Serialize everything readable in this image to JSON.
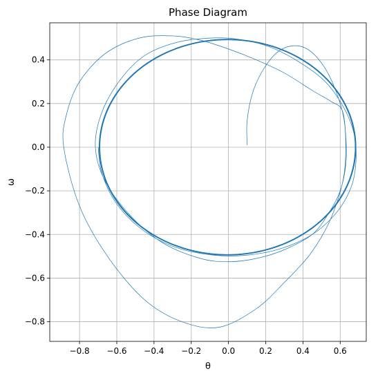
{
  "chart_data": {
    "type": "line",
    "title": "Phase Diagram",
    "xlabel": "θ",
    "ylabel": "ω",
    "xlim": [
      -0.96,
      0.74
    ],
    "ylim": [
      -0.89,
      0.57
    ],
    "xticks": [
      -0.8,
      -0.6,
      -0.4,
      -0.2,
      0.0,
      0.2,
      0.4,
      0.6
    ],
    "yticks": [
      -0.8,
      -0.6,
      -0.4,
      -0.2,
      0.0,
      0.2,
      0.4
    ],
    "xtick_labels": [
      "−0.8",
      "−0.6",
      "−0.4",
      "−0.2",
      "0.0",
      "0.2",
      "0.4",
      "0.6"
    ],
    "ytick_labels": [
      "−0.8",
      "−0.6",
      "−0.4",
      "−0.2",
      "0.0",
      "0.2",
      "0.4"
    ],
    "grid": true,
    "line_color": "#1f77b4",
    "series": [
      {
        "points": [
          [
            0.1,
            0.01
          ],
          [
            0.1,
            0.12
          ],
          [
            0.13,
            0.25
          ],
          [
            0.19,
            0.36
          ],
          [
            0.27,
            0.44
          ],
          [
            0.36,
            0.465
          ],
          [
            0.44,
            0.44
          ],
          [
            0.52,
            0.36
          ],
          [
            0.58,
            0.25
          ],
          [
            0.62,
            0.13
          ],
          [
            0.63,
            0.0
          ],
          [
            0.62,
            -0.13
          ],
          [
            0.58,
            -0.26
          ],
          [
            0.52,
            -0.38
          ],
          [
            0.43,
            -0.5
          ],
          [
            0.3,
            -0.62
          ],
          [
            0.15,
            -0.74
          ],
          [
            -0.05,
            -0.825
          ],
          [
            -0.25,
            -0.8
          ],
          [
            -0.45,
            -0.7
          ],
          [
            -0.65,
            -0.5
          ],
          [
            -0.8,
            -0.27
          ],
          [
            -0.885,
            0.0
          ],
          [
            -0.87,
            0.15
          ],
          [
            -0.8,
            0.3
          ],
          [
            -0.66,
            0.43
          ],
          [
            -0.48,
            0.5
          ],
          [
            -0.3,
            0.51
          ],
          [
            -0.15,
            0.49
          ],
          [
            0.0,
            0.45
          ],
          [
            0.15,
            0.4
          ],
          [
            0.3,
            0.34
          ],
          [
            0.45,
            0.26
          ],
          [
            0.55,
            0.21
          ],
          [
            0.61,
            0.17
          ],
          [
            0.63,
            0.05
          ],
          [
            0.63,
            -0.08
          ],
          [
            0.6,
            -0.2
          ],
          [
            0.54,
            -0.3
          ],
          [
            0.45,
            -0.4
          ],
          [
            0.3,
            -0.47
          ],
          [
            0.15,
            -0.51
          ],
          [
            0.0,
            -0.525
          ],
          [
            -0.15,
            -0.51
          ],
          [
            -0.35,
            -0.44
          ],
          [
            -0.52,
            -0.32
          ],
          [
            -0.66,
            -0.16
          ],
          [
            -0.715,
            0.0
          ],
          [
            -0.68,
            0.16
          ],
          [
            -0.58,
            0.31
          ],
          [
            -0.45,
            0.42
          ],
          [
            -0.28,
            0.48
          ],
          [
            -0.1,
            0.5
          ],
          [
            0.05,
            0.495
          ],
          [
            0.22,
            0.46
          ],
          [
            0.38,
            0.39
          ],
          [
            0.52,
            0.3
          ],
          [
            0.62,
            0.18
          ],
          [
            0.675,
            0.06
          ],
          [
            0.685,
            -0.06
          ],
          [
            0.66,
            -0.18
          ],
          [
            0.58,
            -0.3
          ],
          [
            0.45,
            -0.4
          ],
          [
            0.28,
            -0.465
          ],
          [
            0.1,
            -0.495
          ],
          [
            -0.08,
            -0.495
          ],
          [
            -0.28,
            -0.46
          ],
          [
            -0.46,
            -0.38
          ],
          [
            -0.6,
            -0.26
          ],
          [
            -0.68,
            -0.12
          ],
          [
            -0.7,
            0.0
          ]
        ]
      },
      {
        "name": "",
        "a": 0.69,
        "b": 0.495,
        "center": [
          -0.005,
          0.0
        ],
        "repeats": 6,
        "spread": 0.008
      }
    ]
  }
}
